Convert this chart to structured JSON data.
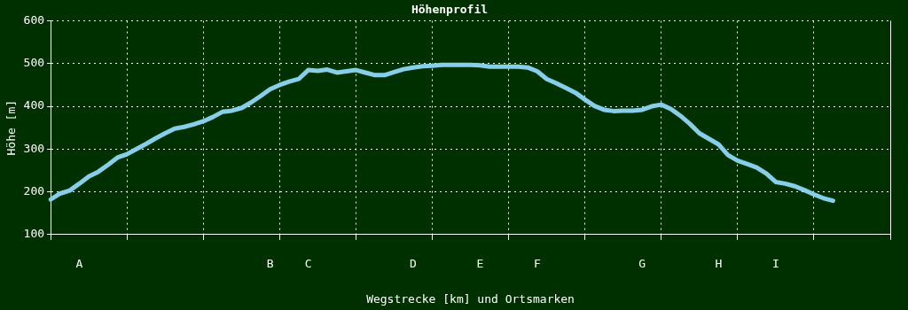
{
  "chart_data": {
    "type": "line",
    "title": "Höhenprofil",
    "xlabel": "Wegstrecke [km] und Ortsmarken",
    "ylabel": "Höhe [m]",
    "categories": [
      null,
      null,
      null,
      "A",
      null,
      null,
      null,
      null,
      null,
      null,
      null,
      null,
      null,
      null,
      null,
      null,
      null,
      null,
      null,
      null,
      null,
      null,
      null,
      "B",
      null,
      null,
      null,
      "C",
      null,
      null,
      null,
      null,
      null,
      null,
      null,
      null,
      null,
      null,
      "D",
      null,
      null,
      null,
      null,
      null,
      null,
      "E",
      null,
      null,
      null,
      null,
      null,
      "F",
      null,
      null,
      null,
      null,
      null,
      null,
      null,
      null,
      null,
      null,
      "G",
      null,
      null,
      null,
      null,
      null,
      null,
      null,
      "H",
      null,
      null,
      null,
      null,
      null,
      "I",
      null,
      null,
      null,
      null,
      null,
      null,
      null,
      null,
      null,
      null,
      null,
      null
    ],
    "series": [
      {
        "color": "#87ceeb",
        "values": [
          182,
          196,
          203,
          219,
          236,
          247,
          263,
          280,
          288,
          300,
          312,
          325,
          337,
          348,
          352,
          358,
          365,
          375,
          387,
          390,
          396,
          409,
          424,
          440,
          450,
          458,
          464,
          485,
          483,
          486,
          479,
          482,
          485,
          479,
          473,
          473,
          480,
          487,
          491,
          494,
          495,
          497,
          497,
          497,
          497,
          496,
          493,
          493,
          493,
          493,
          491,
          482,
          464,
          454,
          443,
          432,
          416,
          401,
          392,
          389,
          390,
          390,
          392,
          400,
          404,
          394,
          378,
          359,
          337,
          324,
          311,
          286,
          273,
          265,
          257,
          243,
          223,
          219,
          213,
          204,
          194,
          185,
          179,
          null,
          null,
          null,
          null,
          null,
          null
        ]
      }
    ],
    "ylim": [
      100,
      600
    ],
    "yticks": [
      100,
      200,
      300,
      400,
      500,
      600
    ],
    "grid": true
  }
}
